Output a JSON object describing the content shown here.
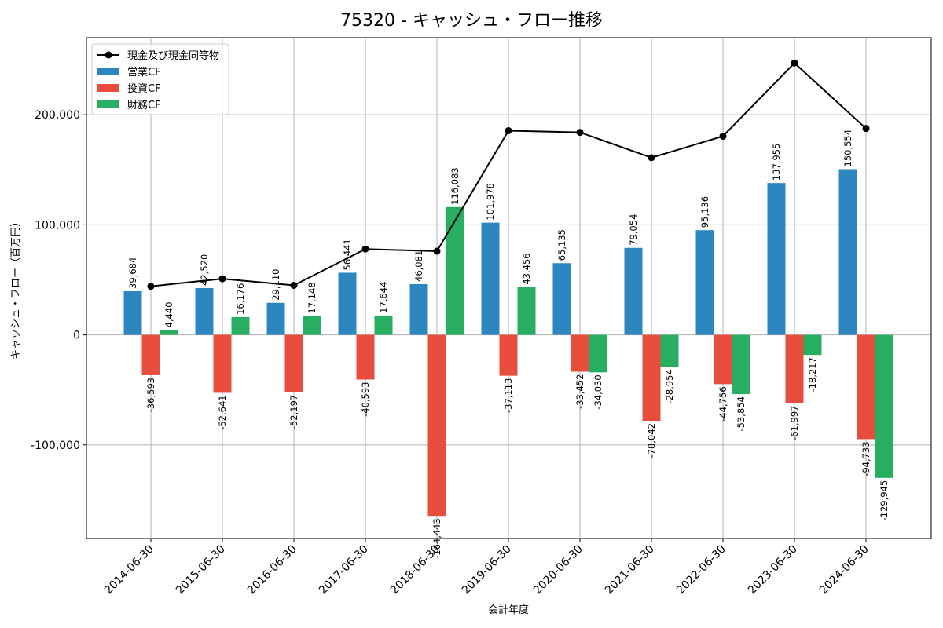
{
  "chart_data": {
    "type": "bar",
    "title": "75320 - キャッシュ・フロー推移",
    "xlabel": "会計年度",
    "ylabel": "キャッシュ・フロー（百万円）",
    "categories": [
      "2014-06-30",
      "2015-06-30",
      "2016-06-30",
      "2017-06-30",
      "2018-06-30",
      "2019-06-30",
      "2020-06-30",
      "2021-06-30",
      "2022-06-30",
      "2023-06-30",
      "2024-06-30"
    ],
    "series": [
      {
        "name": "営業CF",
        "kind": "bar",
        "color": "#2e86c1",
        "values": [
          39684,
          42520,
          29110,
          56441,
          46081,
          101978,
          65135,
          79054,
          95136,
          137955,
          150554
        ]
      },
      {
        "name": "投資CF",
        "kind": "bar",
        "color": "#e74c3c",
        "values": [
          -36593,
          -52641,
          -52197,
          -40593,
          -164443,
          -37113,
          -33452,
          -78042,
          -44756,
          -61997,
          -94733
        ]
      },
      {
        "name": "財務CF",
        "kind": "bar",
        "color": "#27ae60",
        "values": [
          4440,
          16176,
          17148,
          17644,
          116083,
          43456,
          -34030,
          -28954,
          -53854,
          -18217,
          -129945
        ]
      },
      {
        "name": "現金及び現金同等物",
        "kind": "line",
        "color": "#000000",
        "values": [
          44124,
          51000,
          45000,
          78000,
          76000,
          185500,
          184000,
          161000,
          180500,
          247000,
          187500
        ]
      }
    ],
    "yticks": [
      -100000,
      0,
      100000,
      200000
    ],
    "ytick_labels": [
      "-100,000",
      "0",
      "100,000",
      "200,000"
    ],
    "ylim": [
      -185000,
      270000
    ],
    "grid": true,
    "legend_position": "top-left"
  }
}
